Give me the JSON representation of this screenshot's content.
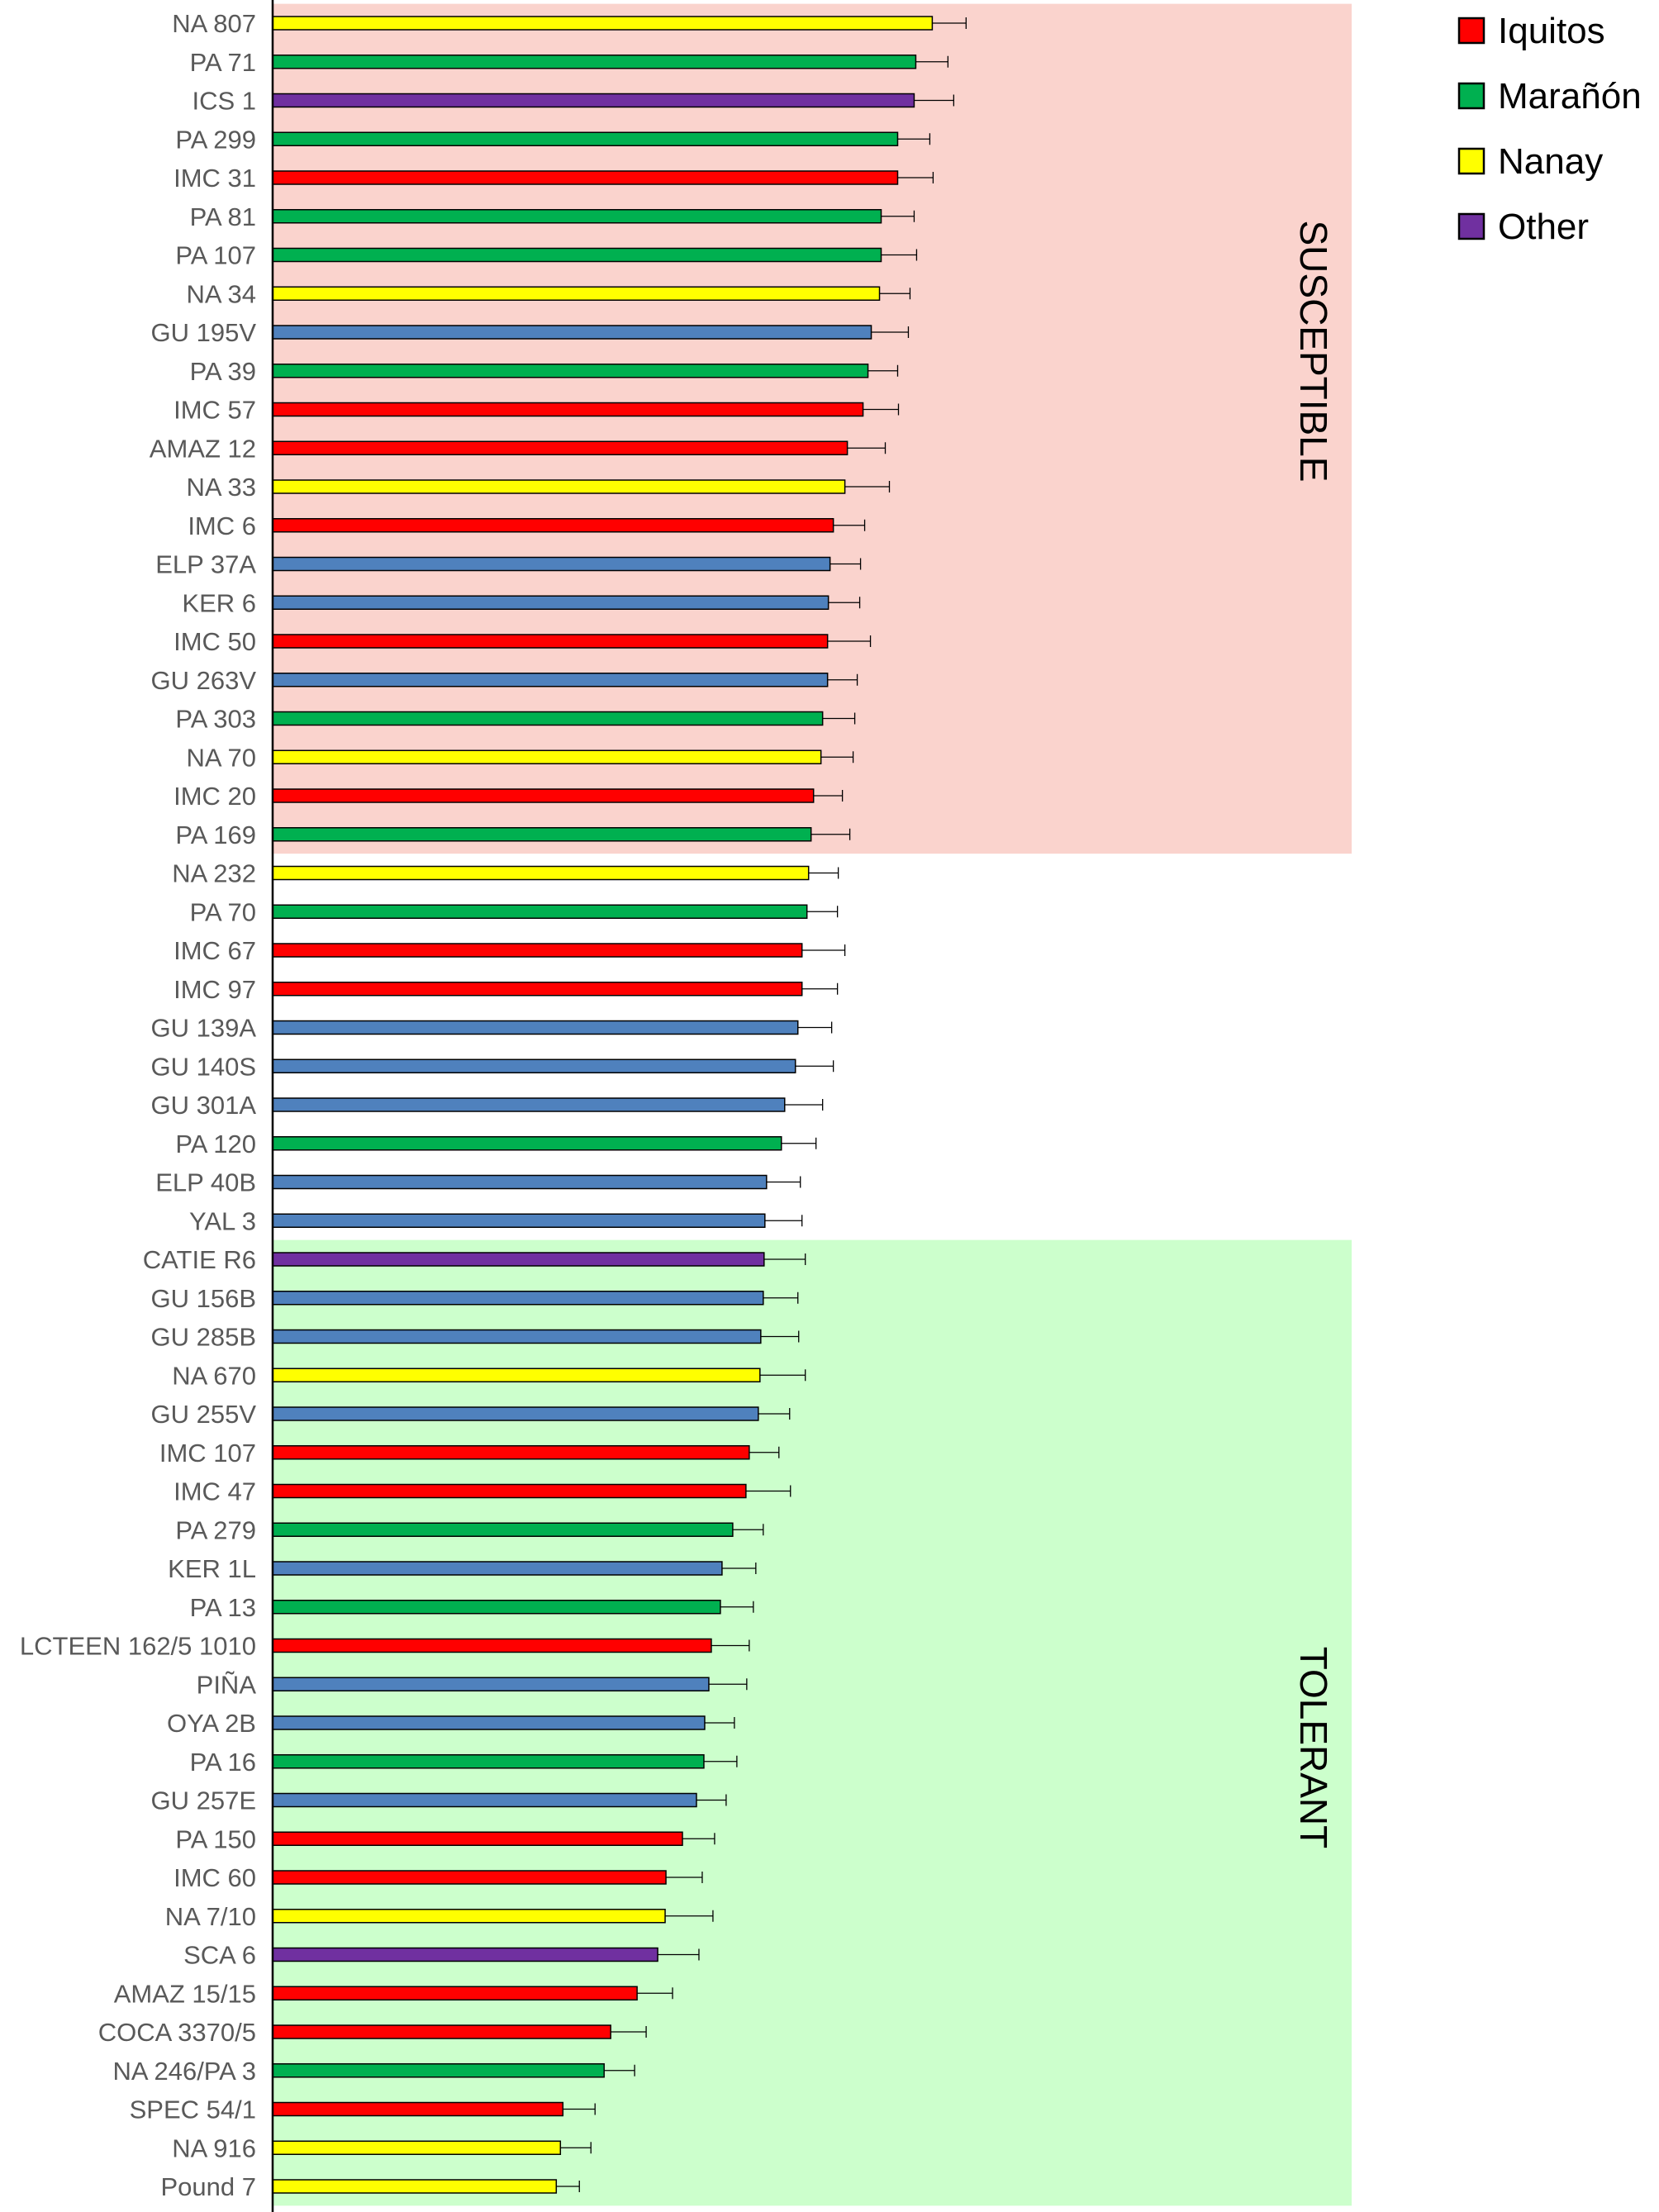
{
  "colors": {
    "Iquitos": "#ff0000",
    "Marañón": "#00b050",
    "Nanay": "#ffff00",
    "Other": "#7030a0",
    "unlisted": "#4f81bd",
    "zone_susceptible": "#fad3cd",
    "zone_tolerant": "#ccffcc"
  },
  "legend": [
    {
      "name": "Iquitos",
      "color": "#ff0000"
    },
    {
      "name": "Marañón",
      "color": "#00b050"
    },
    {
      "name": "Nanay",
      "color": "#ffff00"
    },
    {
      "name": "Other",
      "color": "#7030a0"
    }
  ],
  "zones": [
    {
      "label": "SUSCEPTIBLE",
      "from": "NA 807",
      "to": "PA 169"
    },
    {
      "label": "TOLERANT",
      "from": "CATIE R6",
      "to": "Pound 7"
    }
  ],
  "chart_data": {
    "type": "bar",
    "orientation": "horizontal",
    "title": "",
    "xlabel": "",
    "ylabel": "",
    "xlim": [
      0,
      1.4
    ],
    "grid": false,
    "legend_position": "top-right",
    "categories": [
      "NA 807",
      "PA 71",
      "ICS 1",
      "PA 299",
      "IMC 31",
      "PA 81",
      "PA 107",
      "NA 34",
      "GU 195V",
      "PA 39",
      "IMC 57",
      "AMAZ 12",
      "NA 33",
      "IMC 6",
      "ELP 37A",
      "KER 6",
      "IMC 50",
      "GU 263V",
      "PA 303",
      "NA 70",
      "IMC 20",
      "PA 169",
      "NA 232",
      "PA 70",
      "IMC 67",
      "IMC 97",
      "GU 139A",
      "GU 140S",
      "GU 301A",
      "PA 120",
      "ELP 40B",
      "YAL 3",
      "CATIE R6",
      "GU 156B",
      "GU 285B",
      "NA 670",
      "GU 255V",
      "IMC 107",
      "IMC 47",
      "PA 279",
      "KER 1L",
      "PA 13",
      "LCTEEN 162/5 1010",
      "PIÑA",
      "OYA 2B",
      "PA 16",
      "GU 257E",
      "PA 150",
      "IMC 60",
      "NA 7/10",
      "SCA 6",
      "AMAZ 15/15",
      "COCA 3370/5",
      "NA 246/PA 3",
      "SPEC 54/1",
      "NA 916",
      "Pound 7"
    ],
    "groups": [
      "Nanay",
      "Marañón",
      "Other",
      "Marañón",
      "Iquitos",
      "Marañón",
      "Marañón",
      "Nanay",
      "unlisted",
      "Marañón",
      "Iquitos",
      "Iquitos",
      "Nanay",
      "Iquitos",
      "unlisted",
      "unlisted",
      "Iquitos",
      "unlisted",
      "Marañón",
      "Nanay",
      "Iquitos",
      "Marañón",
      "Nanay",
      "Marañón",
      "Iquitos",
      "Iquitos",
      "unlisted",
      "unlisted",
      "unlisted",
      "Marañón",
      "unlisted",
      "unlisted",
      "Other",
      "unlisted",
      "unlisted",
      "Nanay",
      "unlisted",
      "Iquitos",
      "Iquitos",
      "Marañón",
      "unlisted",
      "Marañón",
      "Iquitos",
      "unlisted",
      "unlisted",
      "Marañón",
      "unlisted",
      "Iquitos",
      "Iquitos",
      "Nanay",
      "Other",
      "Iquitos",
      "Iquitos",
      "Marañón",
      "Iquitos",
      "Nanay",
      "Nanay"
    ],
    "values": [
      0.8,
      0.78,
      0.778,
      0.758,
      0.758,
      0.738,
      0.738,
      0.736,
      0.726,
      0.722,
      0.716,
      0.697,
      0.694,
      0.68,
      0.676,
      0.674,
      0.673,
      0.673,
      0.667,
      0.665,
      0.656,
      0.653,
      0.65,
      0.648,
      0.642,
      0.642,
      0.637,
      0.634,
      0.621,
      0.617,
      0.599,
      0.597,
      0.596,
      0.595,
      0.592,
      0.591,
      0.589,
      0.578,
      0.574,
      0.558,
      0.545,
      0.543,
      0.532,
      0.529,
      0.524,
      0.523,
      0.514,
      0.497,
      0.477,
      0.476,
      0.467,
      0.442,
      0.41,
      0.402,
      0.352,
      0.349,
      0.344
    ],
    "errors": [
      0.041,
      0.039,
      0.048,
      0.039,
      0.043,
      0.04,
      0.043,
      0.037,
      0.045,
      0.036,
      0.043,
      0.046,
      0.054,
      0.038,
      0.037,
      0.038,
      0.052,
      0.036,
      0.039,
      0.039,
      0.035,
      0.047,
      0.036,
      0.037,
      0.052,
      0.043,
      0.041,
      0.046,
      0.046,
      0.042,
      0.041,
      0.045,
      0.05,
      0.042,
      0.046,
      0.055,
      0.038,
      0.036,
      0.054,
      0.037,
      0.041,
      0.04,
      0.046,
      0.046,
      0.036,
      0.04,
      0.036,
      0.039,
      0.044,
      0.058,
      0.05,
      0.043,
      0.043,
      0.037,
      0.039,
      0.037,
      0.028
    ]
  }
}
